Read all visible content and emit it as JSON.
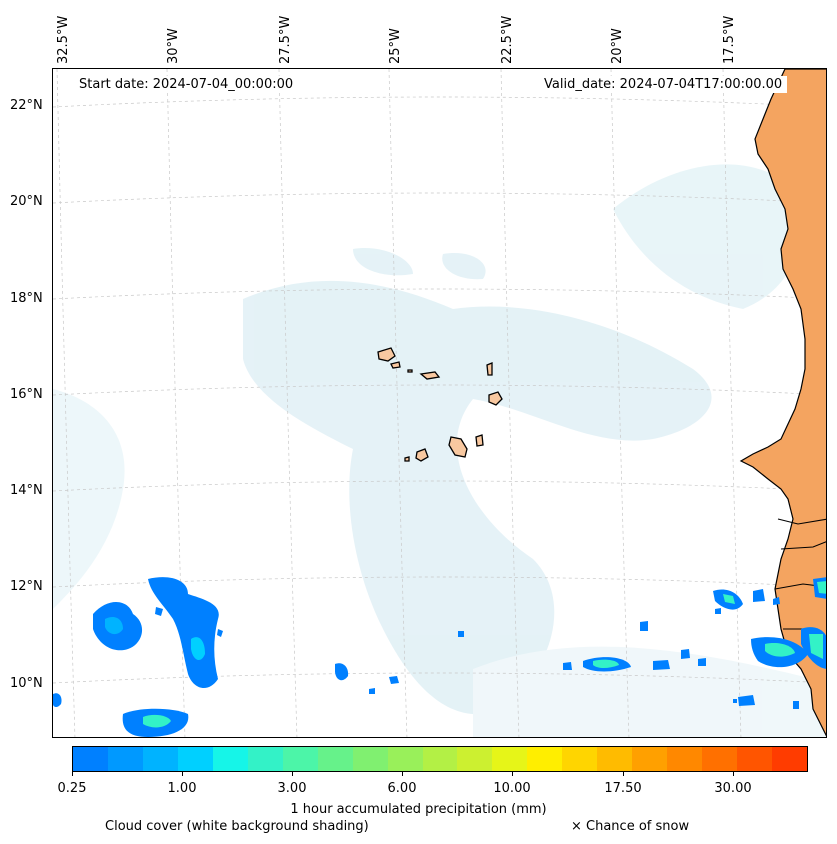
{
  "header": {
    "start_date": "Start date: 2024-07-04_00:00:00",
    "valid_date": "Valid_date: 2024-07-04T17:00:00.00"
  },
  "map": {
    "longitude_labels": [
      "32.5°W",
      "30°W",
      "27.5°W",
      "25°W",
      "22.5°W",
      "20°W",
      "17.5°W"
    ],
    "latitude_labels": [
      "22°N",
      "20°N",
      "18°N",
      "16°N",
      "14°N",
      "12°N",
      "10°N"
    ],
    "land_color": "#f4a460",
    "island_color": "#f8c8a0",
    "cloud_color": "#add8e6"
  },
  "colorbar": {
    "label": "1 hour accumulated precipitation (mm)",
    "tick_labels": [
      "0.25",
      "1.00",
      "3.00",
      "6.00",
      "10.00",
      "17.50",
      "30.00"
    ],
    "colors": [
      "#0080ff",
      "#0099ff",
      "#00b3ff",
      "#00d0ff",
      "#16f5e8",
      "#33f2c7",
      "#4cf5a8",
      "#66f28a",
      "#80f070",
      "#99f05a",
      "#b3f045",
      "#ccf030",
      "#e6f518",
      "#ffee00",
      "#ffd500",
      "#ffbb00",
      "#ffa000",
      "#ff8800",
      "#ff7000",
      "#ff5500",
      "#ff3c00"
    ]
  },
  "legend": {
    "cloud_note": "Cloud cover (white background shading)",
    "snow_note": "× Chance of snow"
  }
}
